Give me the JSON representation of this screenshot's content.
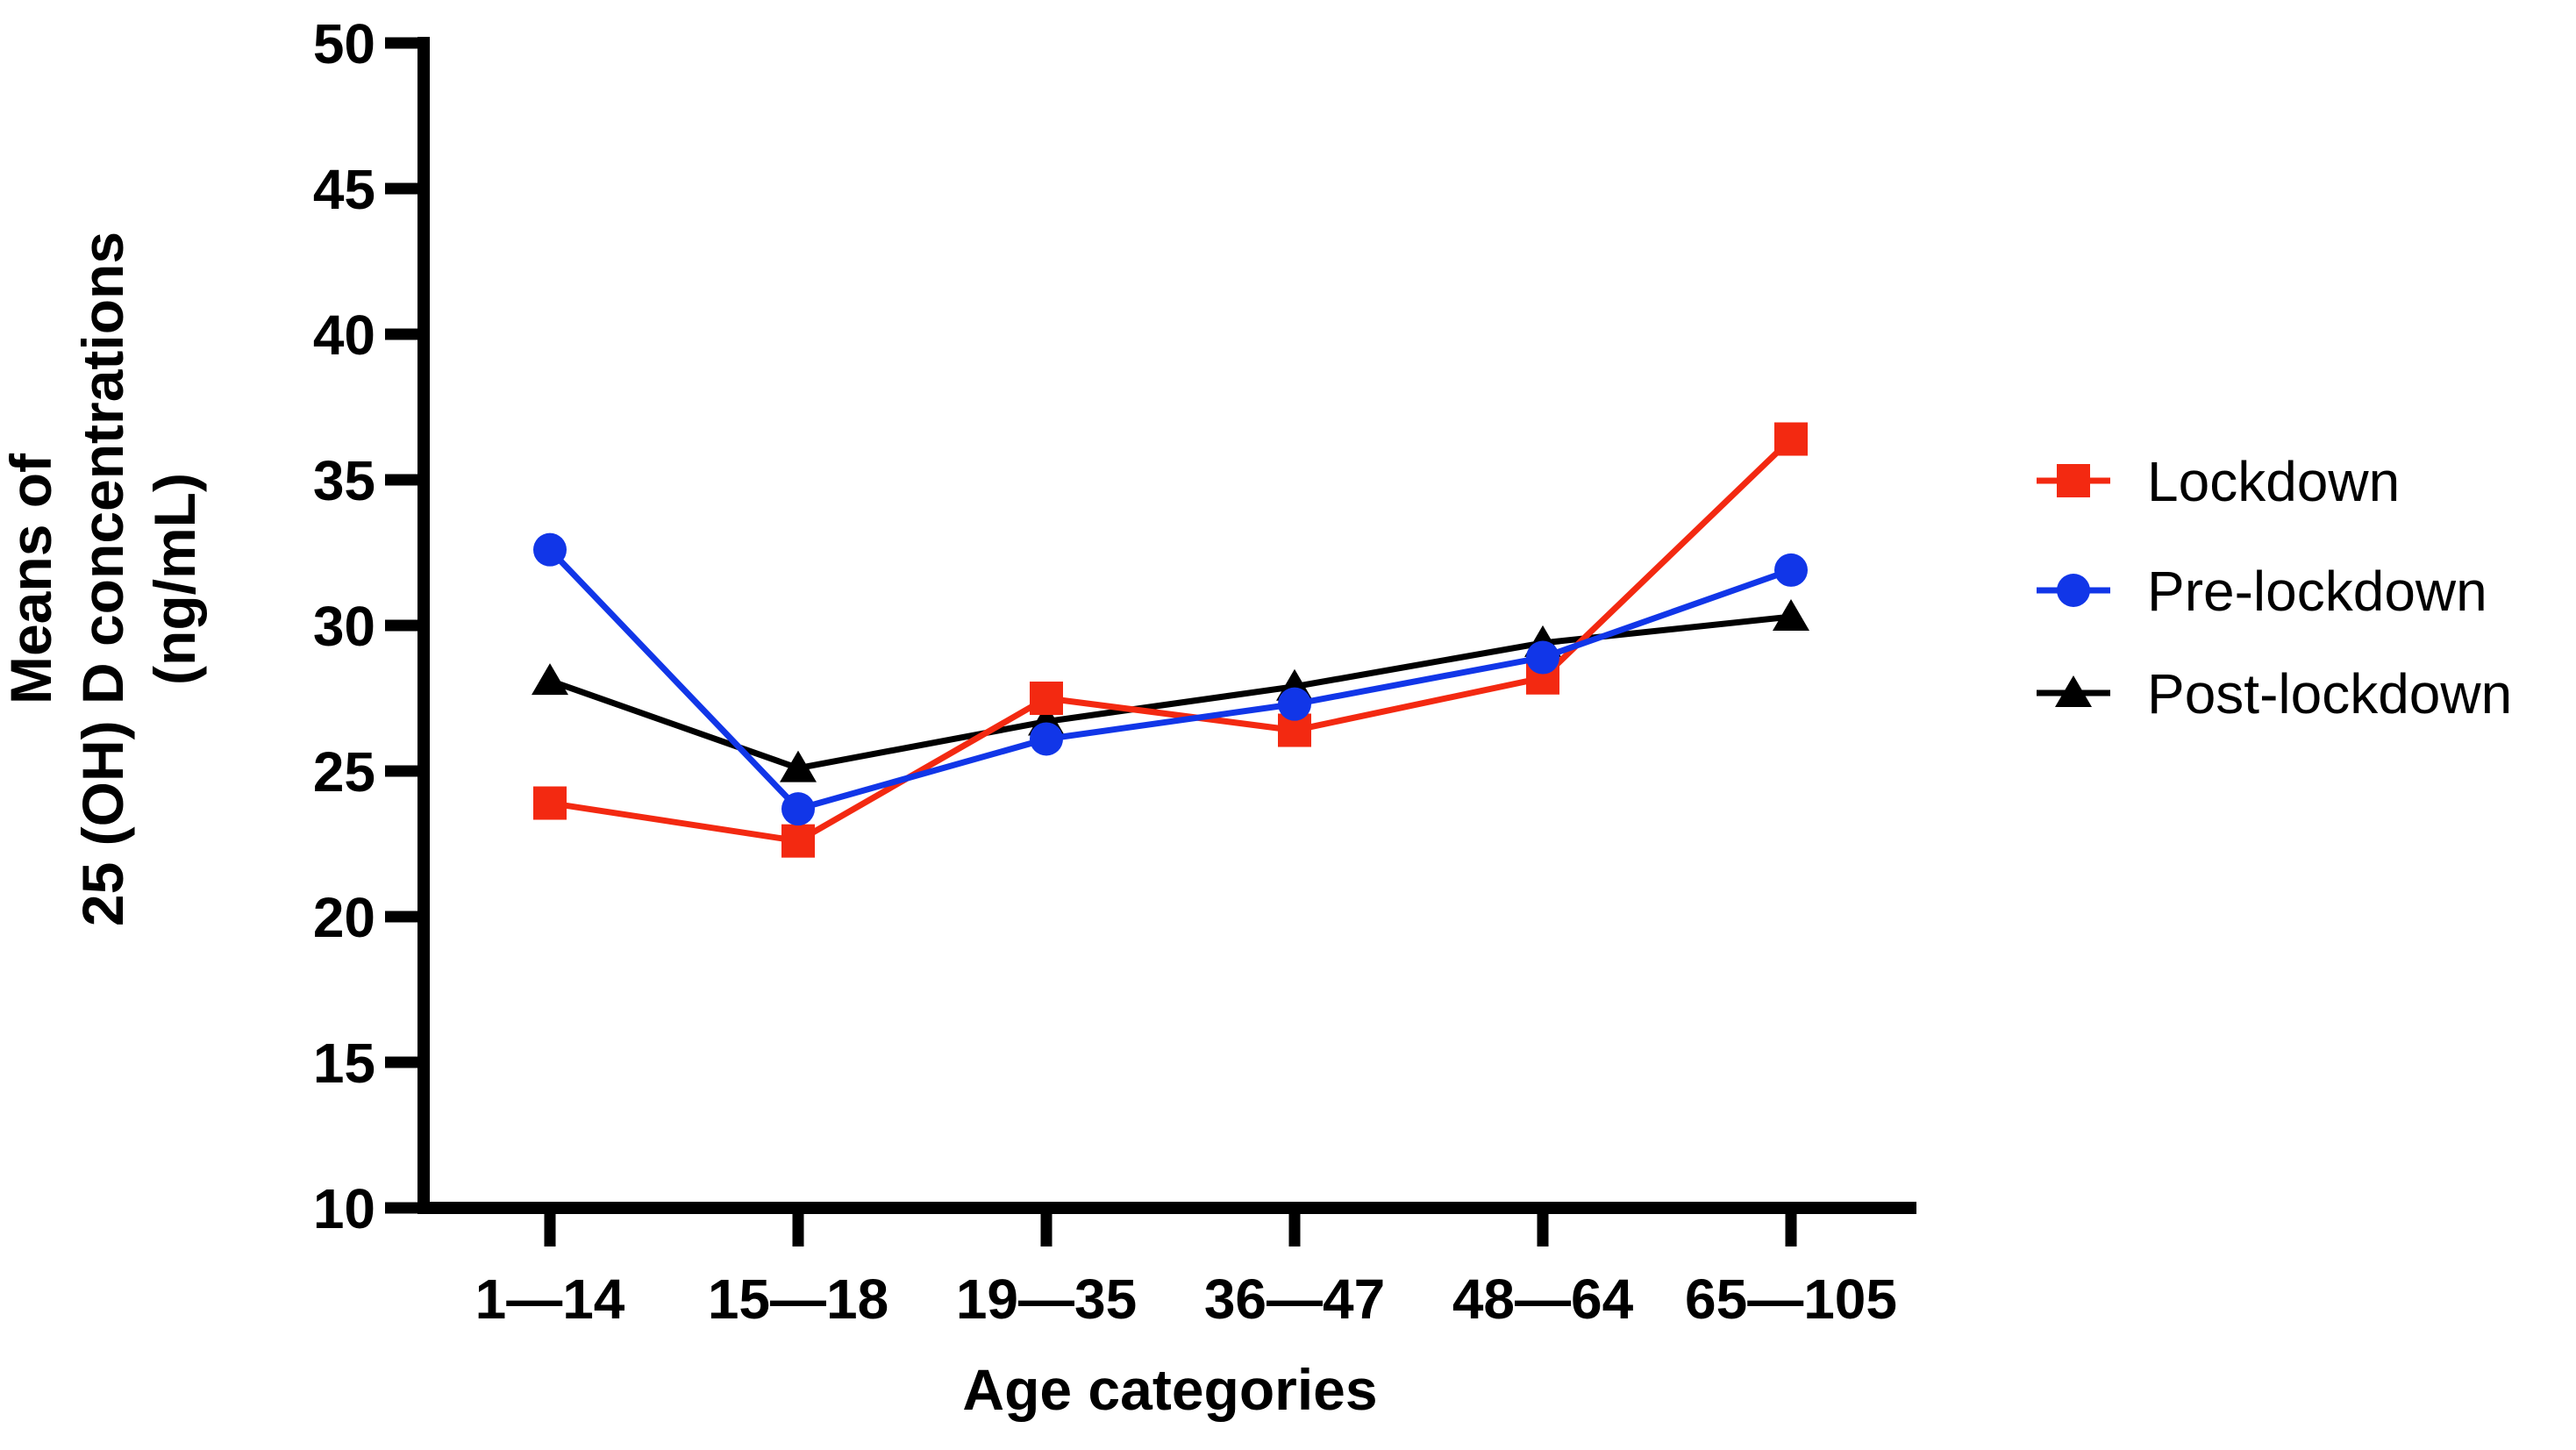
{
  "chart_data": {
    "type": "line",
    "title": "",
    "xlabel": "Age categories",
    "ylabel": "Means of 25 (OH) D concentrations (ng/mL)",
    "ylabel_lines": [
      "Means of",
      "25 (OH) D concentrations",
      "(ng/mL)"
    ],
    "categories": [
      "1—14",
      "15—18",
      "19—35",
      "36—47",
      "48—64",
      "65—105"
    ],
    "y_ticks": [
      10,
      15,
      20,
      25,
      30,
      35,
      40,
      45,
      50
    ],
    "ylim": [
      10,
      50
    ],
    "grid": false,
    "legend_position": "right",
    "axis_color": "#000000",
    "series": [
      {
        "name": "Lockdown",
        "marker": "square",
        "color": "#f32911",
        "values": [
          23.9,
          22.6,
          27.5,
          26.4,
          28.2,
          36.4
        ]
      },
      {
        "name": "Pre-lockdown",
        "marker": "circle",
        "color": "#1136e8",
        "values": [
          32.6,
          23.7,
          26.1,
          27.3,
          28.9,
          31.9
        ]
      },
      {
        "name": "Post-lockdown",
        "marker": "triangle",
        "color": "#000000",
        "values": [
          28.1,
          25.1,
          26.7,
          27.9,
          29.4,
          30.3
        ]
      }
    ]
  }
}
